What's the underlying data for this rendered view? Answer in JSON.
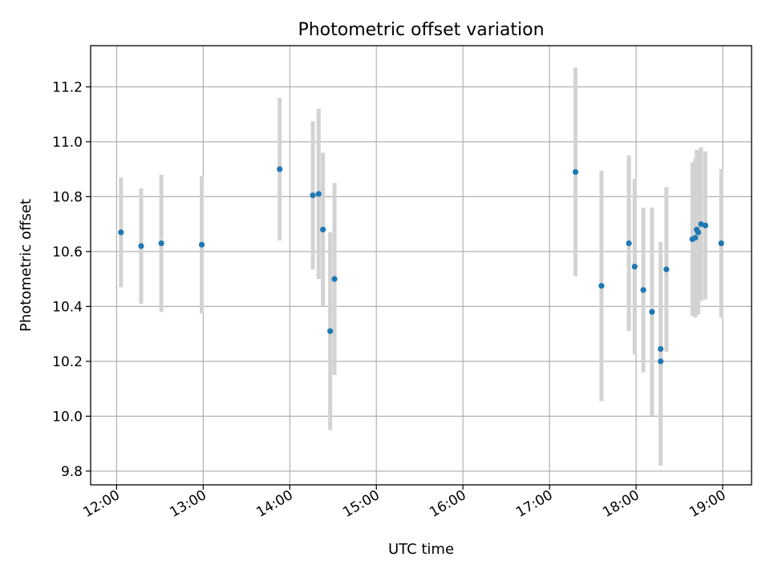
{
  "chart_data": {
    "type": "scatter",
    "title": "Photometric offset variation",
    "xlabel": "UTC time",
    "ylabel": "Photometric offset",
    "x_ticks": [
      "12:00",
      "13:00",
      "14:00",
      "15:00",
      "16:00",
      "17:00",
      "18:00",
      "19:00"
    ],
    "y_ticks": [
      "9.8",
      "10.0",
      "10.2",
      "10.4",
      "10.6",
      "10.8",
      "11.0",
      "11.2"
    ],
    "xlim": [
      "11:42",
      "19:20"
    ],
    "ylim": [
      9.75,
      11.35
    ],
    "grid": true,
    "colors": {
      "marker": "#1f77b4",
      "errorbar": "#d3d3d3",
      "grid": "#b0b0b0"
    },
    "points": [
      {
        "x": "12:03",
        "y": 10.67,
        "err": 0.2
      },
      {
        "x": "12:17",
        "y": 10.62,
        "err": 0.21
      },
      {
        "x": "12:31",
        "y": 10.63,
        "err": 0.25
      },
      {
        "x": "12:59",
        "y": 10.625,
        "err": 0.25
      },
      {
        "x": "13:53",
        "y": 10.9,
        "err": 0.26
      },
      {
        "x": "14:16",
        "y": 10.805,
        "err": 0.27
      },
      {
        "x": "14:20",
        "y": 10.81,
        "err": 0.31
      },
      {
        "x": "14:23",
        "y": 10.68,
        "err": 0.28
      },
      {
        "x": "14:28",
        "y": 10.31,
        "err": 0.36
      },
      {
        "x": "14:31",
        "y": 10.5,
        "err": 0.35
      },
      {
        "x": "17:18",
        "y": 10.89,
        "err": 0.38
      },
      {
        "x": "17:36",
        "y": 10.475,
        "err": 0.42
      },
      {
        "x": "17:55",
        "y": 10.63,
        "err": 0.32
      },
      {
        "x": "17:59",
        "y": 10.545,
        "err": 0.32
      },
      {
        "x": "18:05",
        "y": 10.46,
        "err": 0.3
      },
      {
        "x": "18:11",
        "y": 10.38,
        "err": 0.38
      },
      {
        "x": "18:17",
        "y": 10.245,
        "err": 0.39
      },
      {
        "x": "18:17",
        "y": 10.2,
        "err": 0.38
      },
      {
        "x": "18:21",
        "y": 10.535,
        "err": 0.3
      },
      {
        "x": "18:39",
        "y": 10.645,
        "err": 0.28
      },
      {
        "x": "18:41",
        "y": 10.65,
        "err": 0.29
      },
      {
        "x": "18:42",
        "y": 10.68,
        "err": 0.29
      },
      {
        "x": "18:43",
        "y": 10.67,
        "err": 0.3
      },
      {
        "x": "18:45",
        "y": 10.7,
        "err": 0.28
      },
      {
        "x": "18:48",
        "y": 10.695,
        "err": 0.27
      },
      {
        "x": "18:59",
        "y": 10.63,
        "err": 0.27
      }
    ]
  }
}
